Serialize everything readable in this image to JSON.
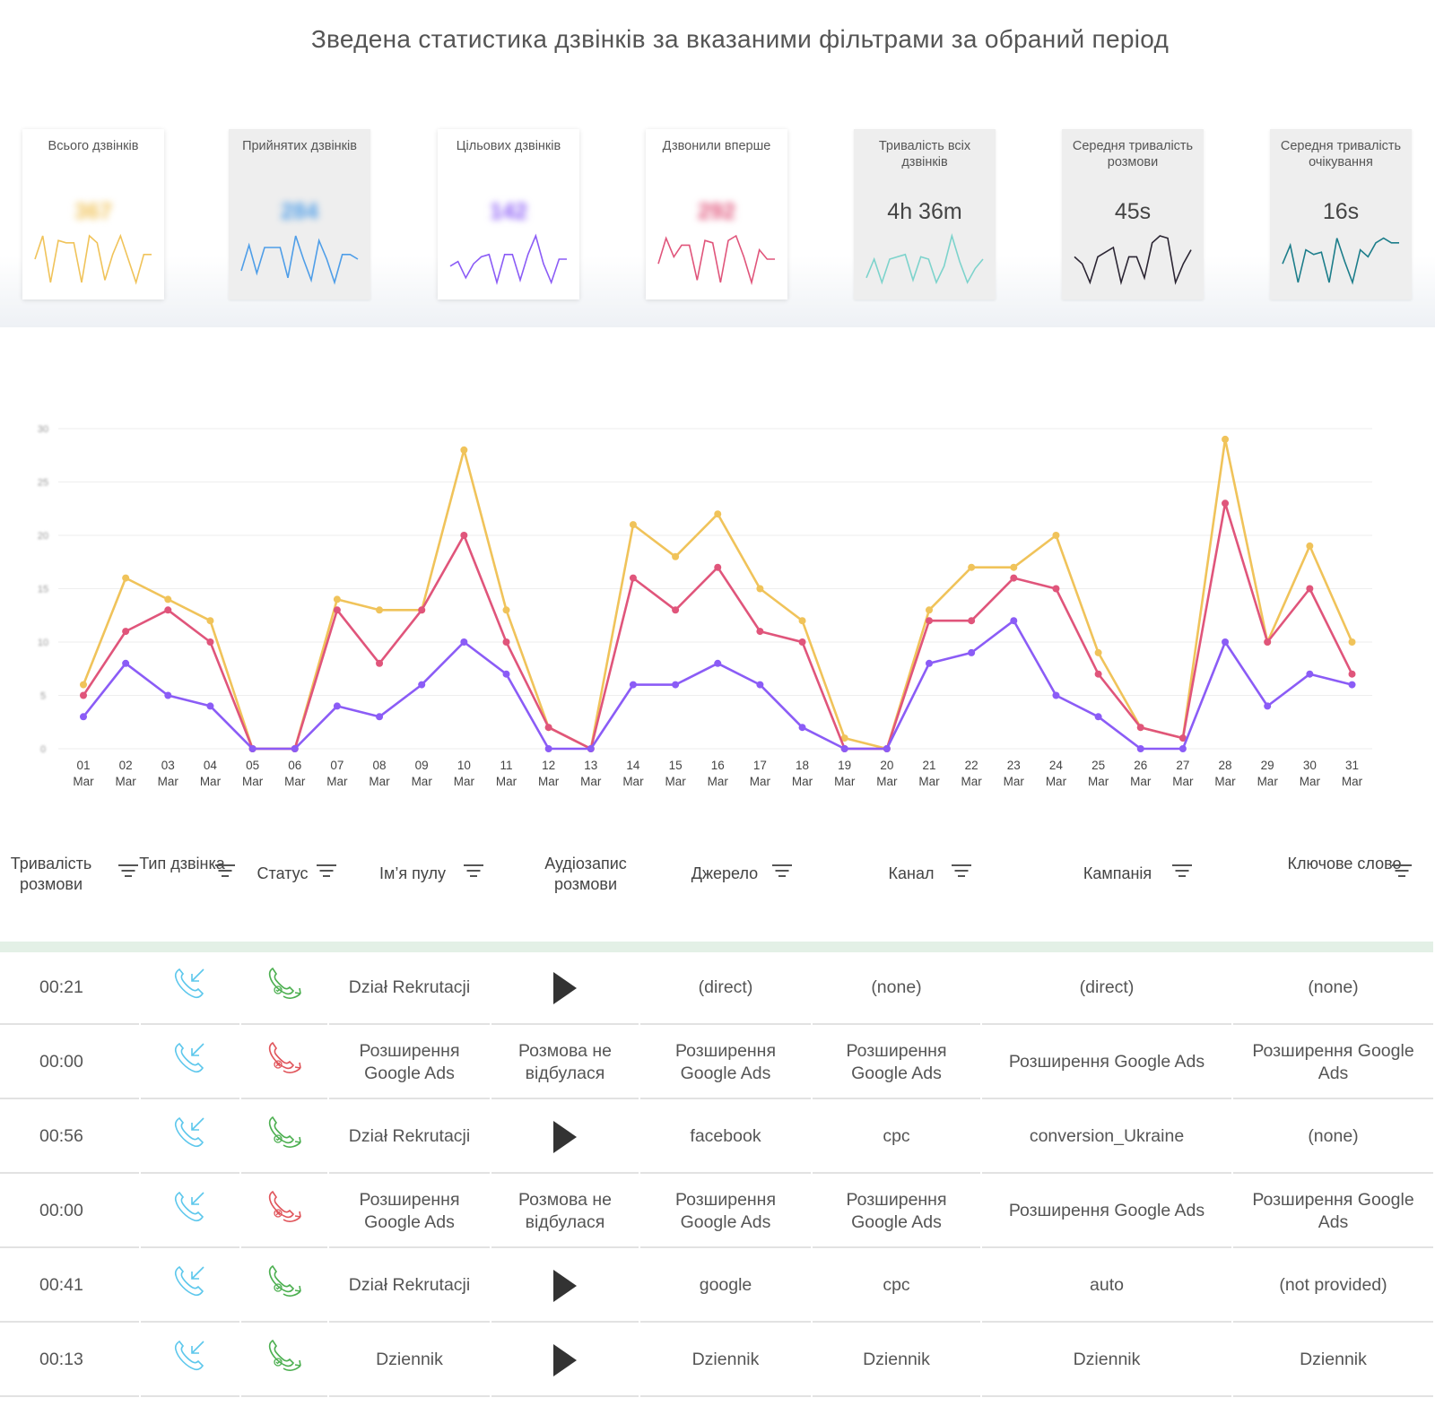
{
  "page_title": "Зведена статистика дзвінків за вказаними фільтрами за обраний період",
  "cards": [
    {
      "label": "Всього дзвінків",
      "value": "367",
      "blurred": true,
      "gray": false,
      "color": "#f0c35a",
      "spark": [
        0.5,
        1.0,
        0.0,
        0.9,
        0.85,
        0.85,
        0.0,
        1.0,
        0.85,
        0.05,
        0.6,
        1.0,
        0.5,
        0.0,
        0.6,
        0.6
      ]
    },
    {
      "label": "Прийнятих дзвінків",
      "value": "284",
      "blurred": true,
      "gray": true,
      "color": "#4f9ee8",
      "spark": [
        0.25,
        0.8,
        0.2,
        0.75,
        0.75,
        0.75,
        0.1,
        1.0,
        0.5,
        0.05,
        0.9,
        0.5,
        0.0,
        0.6,
        0.6,
        0.5
      ]
    },
    {
      "label": "Цільових дзвінків",
      "value": "142",
      "blurred": true,
      "gray": false,
      "color": "#8b5cf6",
      "spark": [
        0.35,
        0.45,
        0.1,
        0.4,
        0.55,
        0.6,
        0.0,
        0.6,
        0.6,
        0.05,
        0.6,
        1.0,
        0.4,
        0.0,
        0.5,
        0.5
      ]
    },
    {
      "label": "Дзвонили вперше",
      "value": "292",
      "blurred": true,
      "gray": false,
      "color": "#e0557b",
      "spark": [
        0.4,
        0.95,
        0.55,
        0.8,
        0.8,
        0.05,
        0.9,
        0.85,
        0.0,
        0.9,
        1.0,
        0.55,
        0.0,
        0.7,
        0.5,
        0.5
      ]
    },
    {
      "label": "Тривалість всіх дзвінків",
      "value": "4h 36m",
      "blurred": false,
      "gray": true,
      "color": "#7dd3cc",
      "spark": [
        0.1,
        0.5,
        0.0,
        0.5,
        0.55,
        0.6,
        0.05,
        0.55,
        0.5,
        0.0,
        0.35,
        1.0,
        0.45,
        0.0,
        0.3,
        0.5
      ]
    },
    {
      "label": "Середня тривалість розмови",
      "value": "45s",
      "blurred": false,
      "gray": true,
      "color": "#2b2533",
      "spark": [
        0.55,
        0.4,
        0.0,
        0.55,
        0.65,
        0.75,
        0.0,
        0.55,
        0.55,
        0.1,
        0.85,
        1.0,
        0.95,
        0.0,
        0.4,
        0.7
      ]
    },
    {
      "label": "Середня тривалість очікування",
      "value": "16s",
      "blurred": false,
      "gray": true,
      "color": "#1c7d8a",
      "spark": [
        0.4,
        0.8,
        0.0,
        0.7,
        0.6,
        0.65,
        0.0,
        0.95,
        0.45,
        0.0,
        0.7,
        0.55,
        0.85,
        0.95,
        0.85,
        0.85
      ]
    }
  ],
  "chart_data": {
    "type": "line",
    "x": [
      "01",
      "02",
      "03",
      "04",
      "05",
      "06",
      "07",
      "08",
      "09",
      "10",
      "11",
      "12",
      "13",
      "14",
      "15",
      "16",
      "17",
      "18",
      "19",
      "20",
      "21",
      "22",
      "23",
      "24",
      "25",
      "26",
      "27",
      "28",
      "29",
      "30",
      "31"
    ],
    "x_sub": "Mar",
    "ylim": [
      0,
      30
    ],
    "yticks": [
      "0",
      "5",
      "10",
      "15",
      "20",
      "25",
      "30"
    ],
    "grid": true,
    "series": [
      {
        "color": "#f0c35a",
        "values": [
          6,
          16,
          14,
          12,
          0,
          0,
          14,
          13,
          13,
          28,
          13,
          2,
          0,
          21,
          18,
          22,
          15,
          12,
          1,
          0,
          13,
          17,
          17,
          20,
          9,
          2,
          1,
          29,
          10,
          19,
          10
        ]
      },
      {
        "color": "#e0557b",
        "values": [
          5,
          11,
          13,
          10,
          0,
          0,
          13,
          8,
          13,
          20,
          10,
          2,
          0,
          16,
          13,
          17,
          11,
          10,
          0,
          0,
          12,
          12,
          16,
          15,
          7,
          2,
          1,
          23,
          10,
          15,
          7
        ]
      },
      {
        "color": "#8b5cf6",
        "values": [
          3,
          8,
          5,
          4,
          0,
          0,
          4,
          3,
          6,
          10,
          7,
          0,
          0,
          6,
          6,
          8,
          6,
          2,
          0,
          0,
          8,
          9,
          12,
          5,
          3,
          0,
          0,
          10,
          4,
          7,
          6
        ]
      }
    ]
  },
  "table": {
    "columns": [
      {
        "label": "Тривалість розмови",
        "filter": true
      },
      {
        "label": "Тип дзвінка",
        "filter": true
      },
      {
        "label": "Статус",
        "filter": true
      },
      {
        "label": "Ім’я пулу",
        "filter": true
      },
      {
        "label": "Аудіозапис розмови",
        "filter": false
      },
      {
        "label": "Джерело",
        "filter": true
      },
      {
        "label": "Канал",
        "filter": true
      },
      {
        "label": "Кампанія",
        "filter": true
      },
      {
        "label": "Ключове слово",
        "filter": true
      }
    ],
    "rows": [
      {
        "duration": "00:21",
        "type_icon": "incoming-call-icon",
        "status": "answered",
        "status_icon": "call-answered-icon",
        "pool": "Dział Rekrutacji",
        "audio": "play",
        "source": "(direct)",
        "channel": "(none)",
        "campaign": "(direct)",
        "keyword": "(none)"
      },
      {
        "duration": "00:00",
        "type_icon": "incoming-call-icon",
        "status": "missed",
        "status_icon": "call-missed-icon",
        "pool": "Розширення Google Ads",
        "audio": "Розмова не відбулася",
        "source": "Розширення Google Ads",
        "channel": "Розширення Google Ads",
        "campaign": "Розширення Google Ads",
        "keyword": "Розширення Google Ads"
      },
      {
        "duration": "00:56",
        "type_icon": "incoming-call-icon",
        "status": "target",
        "status_icon": "call-target-icon",
        "pool": "Dział Rekrutacji",
        "audio": "play",
        "source": "facebook",
        "channel": "cpc",
        "campaign": "conversion_Ukraine",
        "keyword": "(none)"
      },
      {
        "duration": "00:00",
        "type_icon": "incoming-call-icon",
        "status": "missed",
        "status_icon": "call-missed-icon",
        "pool": "Розширення Google Ads",
        "audio": "Розмова не відбулася",
        "source": "Розширення Google Ads",
        "channel": "Розширення Google Ads",
        "campaign": "Розширення Google Ads",
        "keyword": "Розширення Google Ads"
      },
      {
        "duration": "00:41",
        "type_icon": "incoming-call-icon",
        "status": "target",
        "status_icon": "call-target-icon",
        "pool": "Dział Rekrutacji",
        "audio": "play",
        "source": "google",
        "channel": "cpc",
        "campaign": "auto",
        "keyword": "(not provided)"
      },
      {
        "duration": "00:13",
        "type_icon": "incoming-call-icon",
        "status": "answered",
        "status_icon": "call-answered-icon",
        "pool": "Dziennik",
        "audio": "play",
        "source": "Dziennik",
        "channel": "Dziennik",
        "campaign": "Dziennik",
        "keyword": "Dziennik"
      }
    ]
  }
}
